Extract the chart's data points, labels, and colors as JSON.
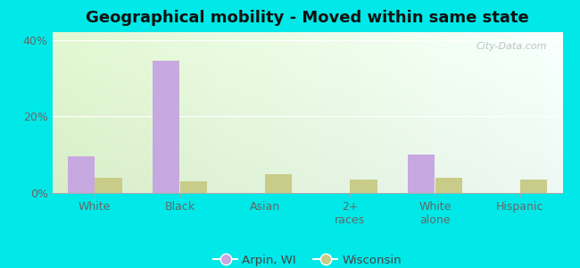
{
  "title": "Geographical mobility - Moved within same state",
  "categories": [
    "White",
    "Black",
    "Asian",
    "2+\nraces",
    "White\nalone",
    "Hispanic"
  ],
  "arpin_values": [
    9.5,
    34.5,
    0,
    0,
    10.0,
    0
  ],
  "wisconsin_values": [
    4.0,
    3.0,
    5.0,
    3.5,
    4.0,
    3.5
  ],
  "arpin_color": "#c8a8e0",
  "wisconsin_color": "#c8cc88",
  "bar_width": 0.32,
  "ylim": [
    0,
    42
  ],
  "yticks": [
    0,
    20,
    40
  ],
  "ytick_labels": [
    "0%",
    "20%",
    "40%"
  ],
  "title_fontsize": 13,
  "tick_fontsize": 9,
  "legend_labels": [
    "Arpin, WI",
    "Wisconsin"
  ],
  "watermark": "City-Data.com",
  "outer_bg": "#00e8e8",
  "plot_bg_left": "#d8eec8",
  "plot_bg_right": "#eef8f4"
}
